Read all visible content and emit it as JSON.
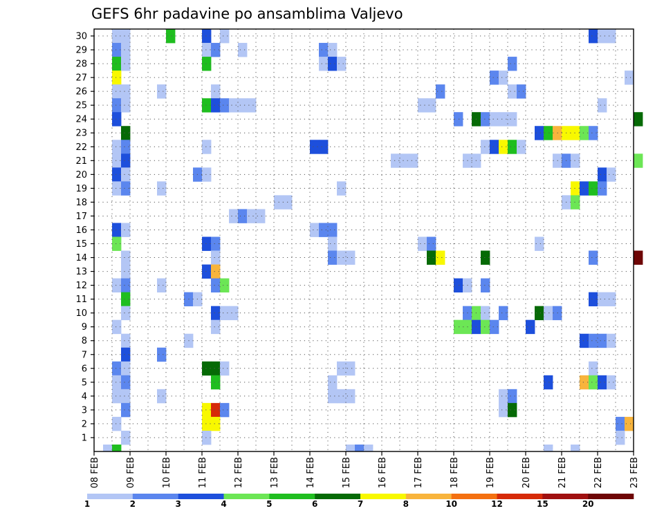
{
  "chart_data": {
    "type": "heatmap",
    "title": "GEFS 6hr padavine po ansamblima Valjevo",
    "x_ticks": [
      "08 FEB",
      "09 FEB",
      "10 FEB",
      "11 FEB",
      "12 FEB",
      "13 FEB",
      "14 FEB",
      "15 FEB",
      "16 FEB",
      "17 FEB",
      "18 FEB",
      "19 FEB",
      "20 FEB",
      "21 FEB",
      "22 FEB",
      "23 FEB"
    ],
    "y_ticks": [
      "1",
      "2",
      "3",
      "4",
      "5",
      "6",
      "7",
      "8",
      "9",
      "10",
      "11",
      "12",
      "13",
      "14",
      "15",
      "16",
      "17",
      "18",
      "19",
      "20",
      "21",
      "22",
      "23",
      "24",
      "25",
      "26",
      "27",
      "28",
      "29",
      "30"
    ],
    "ylim": [
      0,
      30
    ],
    "time_step_hours": 6,
    "grid": true,
    "colorbar": {
      "labels": [
        "1",
        "2",
        "3",
        "4",
        "5",
        "6",
        "7",
        "8",
        "10",
        "12",
        "15",
        "20"
      ],
      "colors": [
        "#b3c6f5",
        "#5b86ee",
        "#1d4fdc",
        "#6ce655",
        "#1fbe1f",
        "#066a06",
        "#f8f800",
        "#f8b43c",
        "#f47010",
        "#d62a08",
        "#a01010",
        "#6e0606"
      ]
    },
    "cells": [
      {
        "m": 30,
        "s": 2,
        "c": 0
      },
      {
        "m": 30,
        "s": 3,
        "c": 0
      },
      {
        "m": 30,
        "s": 8,
        "c": 4
      },
      {
        "m": 30,
        "s": 12,
        "c": 2
      },
      {
        "m": 30,
        "s": 14,
        "c": 0
      },
      {
        "m": 30,
        "s": 55,
        "c": 2
      },
      {
        "m": 30,
        "s": 56,
        "c": 0
      },
      {
        "m": 30,
        "s": 57,
        "c": 0
      },
      {
        "m": 29,
        "s": 2,
        "c": 1
      },
      {
        "m": 29,
        "s": 3,
        "c": 0
      },
      {
        "m": 29,
        "s": 12,
        "c": 0
      },
      {
        "m": 29,
        "s": 13,
        "c": 1
      },
      {
        "m": 29,
        "s": 16,
        "c": 0
      },
      {
        "m": 29,
        "s": 25,
        "c": 1
      },
      {
        "m": 29,
        "s": 26,
        "c": 0
      },
      {
        "m": 28,
        "s": 2,
        "c": 4
      },
      {
        "m": 28,
        "s": 3,
        "c": 0
      },
      {
        "m": 28,
        "s": 12,
        "c": 4
      },
      {
        "m": 28,
        "s": 25,
        "c": 0
      },
      {
        "m": 28,
        "s": 26,
        "c": 2
      },
      {
        "m": 28,
        "s": 27,
        "c": 0
      },
      {
        "m": 28,
        "s": 46,
        "c": 1
      },
      {
        "m": 27,
        "s": 2,
        "c": 6
      },
      {
        "m": 27,
        "s": 44,
        "c": 1
      },
      {
        "m": 27,
        "s": 45,
        "c": 0
      },
      {
        "m": 27,
        "s": 59,
        "c": 0
      },
      {
        "m": 26,
        "s": 2,
        "c": 0
      },
      {
        "m": 26,
        "s": 3,
        "c": 0
      },
      {
        "m": 26,
        "s": 7,
        "c": 0
      },
      {
        "m": 26,
        "s": 13,
        "c": 0
      },
      {
        "m": 26,
        "s": 38,
        "c": 1
      },
      {
        "m": 26,
        "s": 46,
        "c": 0
      },
      {
        "m": 26,
        "s": 47,
        "c": 1
      },
      {
        "m": 25,
        "s": 2,
        "c": 1
      },
      {
        "m": 25,
        "s": 3,
        "c": 0
      },
      {
        "m": 25,
        "s": 12,
        "c": 4
      },
      {
        "m": 25,
        "s": 13,
        "c": 2
      },
      {
        "m": 25,
        "s": 14,
        "c": 1
      },
      {
        "m": 25,
        "s": 15,
        "c": 0
      },
      {
        "m": 25,
        "s": 16,
        "c": 0
      },
      {
        "m": 25,
        "s": 17,
        "c": 0
      },
      {
        "m": 25,
        "s": 36,
        "c": 0
      },
      {
        "m": 25,
        "s": 37,
        "c": 0
      },
      {
        "m": 25,
        "s": 56,
        "c": 0
      },
      {
        "m": 24,
        "s": 2,
        "c": 2
      },
      {
        "m": 24,
        "s": 40,
        "c": 1
      },
      {
        "m": 24,
        "s": 42,
        "c": 5
      },
      {
        "m": 24,
        "s": 43,
        "c": 1
      },
      {
        "m": 24,
        "s": 44,
        "c": 0
      },
      {
        "m": 24,
        "s": 45,
        "c": 0
      },
      {
        "m": 24,
        "s": 46,
        "c": 0
      },
      {
        "m": 24,
        "s": 60,
        "c": 5
      },
      {
        "m": 23,
        "s": 3,
        "c": 5
      },
      {
        "m": 23,
        "s": 49,
        "c": 2
      },
      {
        "m": 23,
        "s": 50,
        "c": 4
      },
      {
        "m": 23,
        "s": 51,
        "c": 7
      },
      {
        "m": 23,
        "s": 52,
        "c": 6
      },
      {
        "m": 23,
        "s": 53,
        "c": 6
      },
      {
        "m": 23,
        "s": 54,
        "c": 3
      },
      {
        "m": 23,
        "s": 55,
        "c": 1
      },
      {
        "m": 22,
        "s": 2,
        "c": 0
      },
      {
        "m": 22,
        "s": 3,
        "c": 1
      },
      {
        "m": 22,
        "s": 12,
        "c": 0
      },
      {
        "m": 22,
        "s": 24,
        "c": 2
      },
      {
        "m": 22,
        "s": 25,
        "c": 2
      },
      {
        "m": 22,
        "s": 43,
        "c": 0
      },
      {
        "m": 22,
        "s": 44,
        "c": 2
      },
      {
        "m": 22,
        "s": 45,
        "c": 6
      },
      {
        "m": 22,
        "s": 46,
        "c": 4
      },
      {
        "m": 22,
        "s": 47,
        "c": 0
      },
      {
        "m": 21,
        "s": 2,
        "c": 0
      },
      {
        "m": 21,
        "s": 3,
        "c": 2
      },
      {
        "m": 21,
        "s": 33,
        "c": 0
      },
      {
        "m": 21,
        "s": 34,
        "c": 0
      },
      {
        "m": 21,
        "s": 35,
        "c": 0
      },
      {
        "m": 21,
        "s": 41,
        "c": 0
      },
      {
        "m": 21,
        "s": 42,
        "c": 0
      },
      {
        "m": 21,
        "s": 51,
        "c": 0
      },
      {
        "m": 21,
        "s": 52,
        "c": 1
      },
      {
        "m": 21,
        "s": 53,
        "c": 0
      },
      {
        "m": 21,
        "s": 60,
        "c": 3
      },
      {
        "m": 20,
        "s": 2,
        "c": 2
      },
      {
        "m": 20,
        "s": 3,
        "c": 0
      },
      {
        "m": 20,
        "s": 11,
        "c": 1
      },
      {
        "m": 20,
        "s": 12,
        "c": 0
      },
      {
        "m": 20,
        "s": 56,
        "c": 2
      },
      {
        "m": 20,
        "s": 57,
        "c": 0
      },
      {
        "m": 19,
        "s": 2,
        "c": 0
      },
      {
        "m": 19,
        "s": 3,
        "c": 1
      },
      {
        "m": 19,
        "s": 7,
        "c": 0
      },
      {
        "m": 19,
        "s": 27,
        "c": 0
      },
      {
        "m": 19,
        "s": 53,
        "c": 6
      },
      {
        "m": 19,
        "s": 54,
        "c": 2
      },
      {
        "m": 19,
        "s": 55,
        "c": 4
      },
      {
        "m": 19,
        "s": 56,
        "c": 1
      },
      {
        "m": 18,
        "s": 20,
        "c": 0
      },
      {
        "m": 18,
        "s": 21,
        "c": 0
      },
      {
        "m": 18,
        "s": 52,
        "c": 0
      },
      {
        "m": 18,
        "s": 53,
        "c": 3
      },
      {
        "m": 17,
        "s": 15,
        "c": 0
      },
      {
        "m": 17,
        "s": 16,
        "c": 1
      },
      {
        "m": 17,
        "s": 17,
        "c": 0
      },
      {
        "m": 17,
        "s": 18,
        "c": 0
      },
      {
        "m": 16,
        "s": 2,
        "c": 2
      },
      {
        "m": 16,
        "s": 3,
        "c": 0
      },
      {
        "m": 16,
        "s": 24,
        "c": 0
      },
      {
        "m": 16,
        "s": 25,
        "c": 1
      },
      {
        "m": 16,
        "s": 26,
        "c": 1
      },
      {
        "m": 15,
        "s": 2,
        "c": 3
      },
      {
        "m": 15,
        "s": 12,
        "c": 2
      },
      {
        "m": 15,
        "s": 13,
        "c": 1
      },
      {
        "m": 15,
        "s": 26,
        "c": 0
      },
      {
        "m": 15,
        "s": 36,
        "c": 0
      },
      {
        "m": 15,
        "s": 37,
        "c": 1
      },
      {
        "m": 15,
        "s": 49,
        "c": 0
      },
      {
        "m": 14,
        "s": 3,
        "c": 0
      },
      {
        "m": 14,
        "s": 13,
        "c": 0
      },
      {
        "m": 14,
        "s": 26,
        "c": 1
      },
      {
        "m": 14,
        "s": 27,
        "c": 0
      },
      {
        "m": 14,
        "s": 28,
        "c": 0
      },
      {
        "m": 14,
        "s": 37,
        "c": 5
      },
      {
        "m": 14,
        "s": 38,
        "c": 6
      },
      {
        "m": 14,
        "s": 43,
        "c": 5
      },
      {
        "m": 14,
        "s": 55,
        "c": 1
      },
      {
        "m": 14,
        "s": 60,
        "c": 11
      },
      {
        "m": 13,
        "s": 3,
        "c": 0
      },
      {
        "m": 13,
        "s": 12,
        "c": 2
      },
      {
        "m": 13,
        "s": 13,
        "c": 7
      },
      {
        "m": 12,
        "s": 2,
        "c": 0
      },
      {
        "m": 12,
        "s": 3,
        "c": 1
      },
      {
        "m": 12,
        "s": 7,
        "c": 0
      },
      {
        "m": 12,
        "s": 13,
        "c": 1
      },
      {
        "m": 12,
        "s": 14,
        "c": 3
      },
      {
        "m": 12,
        "s": 40,
        "c": 2
      },
      {
        "m": 12,
        "s": 41,
        "c": 0
      },
      {
        "m": 12,
        "s": 43,
        "c": 1
      },
      {
        "m": 11,
        "s": 3,
        "c": 4
      },
      {
        "m": 11,
        "s": 10,
        "c": 1
      },
      {
        "m": 11,
        "s": 11,
        "c": 0
      },
      {
        "m": 11,
        "s": 55,
        "c": 2
      },
      {
        "m": 11,
        "s": 56,
        "c": 0
      },
      {
        "m": 11,
        "s": 57,
        "c": 0
      },
      {
        "m": 10,
        "s": 3,
        "c": 0
      },
      {
        "m": 10,
        "s": 13,
        "c": 2
      },
      {
        "m": 10,
        "s": 14,
        "c": 0
      },
      {
        "m": 10,
        "s": 15,
        "c": 0
      },
      {
        "m": 10,
        "s": 41,
        "c": 1
      },
      {
        "m": 10,
        "s": 42,
        "c": 3
      },
      {
        "m": 10,
        "s": 43,
        "c": 0
      },
      {
        "m": 10,
        "s": 45,
        "c": 1
      },
      {
        "m": 10,
        "s": 49,
        "c": 5
      },
      {
        "m": 10,
        "s": 50,
        "c": 0
      },
      {
        "m": 10,
        "s": 51,
        "c": 1
      },
      {
        "m": 9,
        "s": 2,
        "c": 0
      },
      {
        "m": 9,
        "s": 13,
        "c": 0
      },
      {
        "m": 9,
        "s": 40,
        "c": 3
      },
      {
        "m": 9,
        "s": 41,
        "c": 3
      },
      {
        "m": 9,
        "s": 42,
        "c": 2
      },
      {
        "m": 9,
        "s": 43,
        "c": 3
      },
      {
        "m": 9,
        "s": 44,
        "c": 1
      },
      {
        "m": 9,
        "s": 48,
        "c": 2
      },
      {
        "m": 8,
        "s": 3,
        "c": 0
      },
      {
        "m": 8,
        "s": 10,
        "c": 0
      },
      {
        "m": 8,
        "s": 54,
        "c": 2
      },
      {
        "m": 8,
        "s": 55,
        "c": 1
      },
      {
        "m": 8,
        "s": 56,
        "c": 1
      },
      {
        "m": 8,
        "s": 57,
        "c": 0
      },
      {
        "m": 7,
        "s": 3,
        "c": 2
      },
      {
        "m": 7,
        "s": 7,
        "c": 1
      },
      {
        "m": 6,
        "s": 2,
        "c": 1
      },
      {
        "m": 6,
        "s": 3,
        "c": 0
      },
      {
        "m": 6,
        "s": 12,
        "c": 5
      },
      {
        "m": 6,
        "s": 13,
        "c": 5
      },
      {
        "m": 6,
        "s": 14,
        "c": 0
      },
      {
        "m": 6,
        "s": 27,
        "c": 0
      },
      {
        "m": 6,
        "s": 28,
        "c": 0
      },
      {
        "m": 6,
        "s": 55,
        "c": 0
      },
      {
        "m": 5,
        "s": 2,
        "c": 0
      },
      {
        "m": 5,
        "s": 3,
        "c": 1
      },
      {
        "m": 5,
        "s": 13,
        "c": 4
      },
      {
        "m": 5,
        "s": 26,
        "c": 0
      },
      {
        "m": 5,
        "s": 50,
        "c": 2
      },
      {
        "m": 5,
        "s": 54,
        "c": 7
      },
      {
        "m": 5,
        "s": 55,
        "c": 3
      },
      {
        "m": 5,
        "s": 56,
        "c": 2
      },
      {
        "m": 5,
        "s": 57,
        "c": 0
      },
      {
        "m": 4,
        "s": 2,
        "c": 0
      },
      {
        "m": 4,
        "s": 3,
        "c": 0
      },
      {
        "m": 4,
        "s": 7,
        "c": 0
      },
      {
        "m": 4,
        "s": 26,
        "c": 0
      },
      {
        "m": 4,
        "s": 27,
        "c": 0
      },
      {
        "m": 4,
        "s": 28,
        "c": 0
      },
      {
        "m": 4,
        "s": 45,
        "c": 0
      },
      {
        "m": 4,
        "s": 46,
        "c": 1
      },
      {
        "m": 3,
        "s": 3,
        "c": 1
      },
      {
        "m": 3,
        "s": 12,
        "c": 6
      },
      {
        "m": 3,
        "s": 13,
        "c": 9
      },
      {
        "m": 3,
        "s": 14,
        "c": 1
      },
      {
        "m": 3,
        "s": 45,
        "c": 0
      },
      {
        "m": 3,
        "s": 46,
        "c": 5
      },
      {
        "m": 2,
        "s": 2,
        "c": 0
      },
      {
        "m": 2,
        "s": 12,
        "c": 6
      },
      {
        "m": 2,
        "s": 13,
        "c": 6
      },
      {
        "m": 2,
        "s": 58,
        "c": 1
      },
      {
        "m": 2,
        "s": 59,
        "c": 7
      },
      {
        "m": 1,
        "s": 3,
        "c": 0
      },
      {
        "m": 1,
        "s": 12,
        "c": 0
      },
      {
        "m": 1,
        "s": 58,
        "c": 0
      },
      {
        "m": 0,
        "s": 1,
        "c": 0
      },
      {
        "m": 0,
        "s": 2,
        "c": 4
      },
      {
        "m": 0,
        "s": 28,
        "c": 0
      },
      {
        "m": 0,
        "s": 29,
        "c": 1
      },
      {
        "m": 0,
        "s": 30,
        "c": 0
      },
      {
        "m": 0,
        "s": 50,
        "c": 0
      },
      {
        "m": 0,
        "s": 53,
        "c": 0
      }
    ]
  }
}
